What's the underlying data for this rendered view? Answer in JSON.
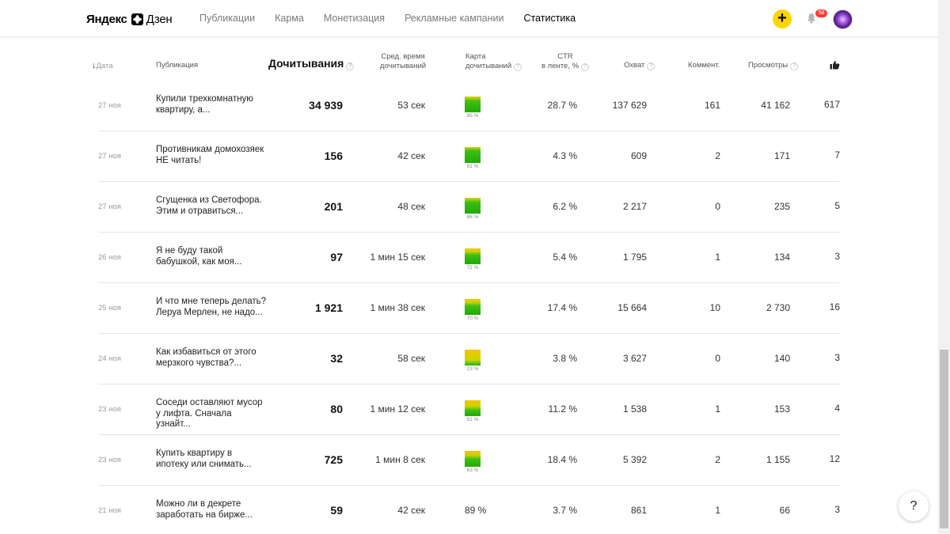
{
  "header": {
    "logo_brand": "Яндекс",
    "logo_product": "Дзен",
    "nav": [
      "Публикации",
      "Карма",
      "Монетизация",
      "Рекламные кампании",
      "Статистика"
    ],
    "active_nav": "Статистика",
    "plus_label": "+",
    "notifications_count": "58"
  },
  "columns": {
    "date": "Дата",
    "publication": "Публикация",
    "reads": "Дочитывания",
    "avg_time_line1": "Сред. время",
    "avg_time_line2": "дочитываний",
    "map_line1": "Карта",
    "map_line2": "дочитываний",
    "ctr_line1": "CTR",
    "ctr_line2": "в ленте, %",
    "reach": "Охват",
    "comments": "Коммент.",
    "views": "Просмотры",
    "likes_icon": "thumbs-up-icon"
  },
  "rows": [
    {
      "date": "27 ноя",
      "title": "Купили трехкомнатную квартиру, а...",
      "reads": "34 939",
      "avg": "53 сек",
      "map": "85 %",
      "map_level": 0.85,
      "ctr": "28.7 %",
      "reach": "137 629",
      "comments": "161",
      "views": "41 162",
      "likes": "617"
    },
    {
      "date": "27 ноя",
      "title": "Противникам домохозяек НЕ читать!",
      "reads": "156",
      "avg": "42 сек",
      "map": "91 %",
      "map_level": 0.91,
      "ctr": "4.3 %",
      "reach": "609",
      "comments": "2",
      "views": "171",
      "likes": "7"
    },
    {
      "date": "27 ноя",
      "title": "Сгущенка из Светофора. Этим и отравиться...",
      "reads": "201",
      "avg": "48 сек",
      "map": "86 %",
      "map_level": 0.86,
      "ctr": "6.2 %",
      "reach": "2 217",
      "comments": "0",
      "views": "235",
      "likes": "5"
    },
    {
      "date": "26 ноя",
      "title": "Я не буду такой бабушкой, как моя...",
      "reads": "97",
      "avg": "1 мин 15 сек",
      "map": "72 %",
      "map_level": 0.72,
      "ctr": "5.4 %",
      "reach": "1 795",
      "comments": "1",
      "views": "134",
      "likes": "3"
    },
    {
      "date": "25 ноя",
      "title": "И что мне теперь делать? Леруа Мерлен, не надо...",
      "reads": "1 921",
      "avg": "1 мин 38 сек",
      "map": "70 %",
      "map_level": 0.7,
      "ctr": "17.4 %",
      "reach": "15 664",
      "comments": "10",
      "views": "2 730",
      "likes": "16"
    },
    {
      "date": "24 ноя",
      "title": "Как избавиться от этого мерзкого чувства?...",
      "reads": "32",
      "avg": "58 сек",
      "map": "23 %",
      "map_level": 0.23,
      "ctr": "3.8 %",
      "reach": "3 627",
      "comments": "0",
      "views": "140",
      "likes": "3"
    },
    {
      "date": "23 ноя",
      "title": "Соседи оставляют мусор у лифта. Сначала узнайт...",
      "reads": "80",
      "avg": "1 мин 12 сек",
      "map": "52 %",
      "map_level": 0.52,
      "ctr": "11.2 %",
      "reach": "1 538",
      "comments": "1",
      "views": "153",
      "likes": "4"
    },
    {
      "date": "23 ноя",
      "title": "Купить квартиру в ипотеку или снимать...",
      "reads": "725",
      "avg": "1 мин 8 сек",
      "map": "63 %",
      "map_level": 0.63,
      "ctr": "18.4 %",
      "reach": "5 392",
      "comments": "2",
      "views": "1 155",
      "likes": "12"
    },
    {
      "date": "21 ноя",
      "title": "Можно ли в декрете заработать на бирже...",
      "reads": "59",
      "avg": "42 сек",
      "map": "89 %",
      "map_level": null,
      "ctr": "3.7 %",
      "reach": "861",
      "comments": "1",
      "views": "66",
      "likes": "3"
    }
  ],
  "help_label": "?"
}
